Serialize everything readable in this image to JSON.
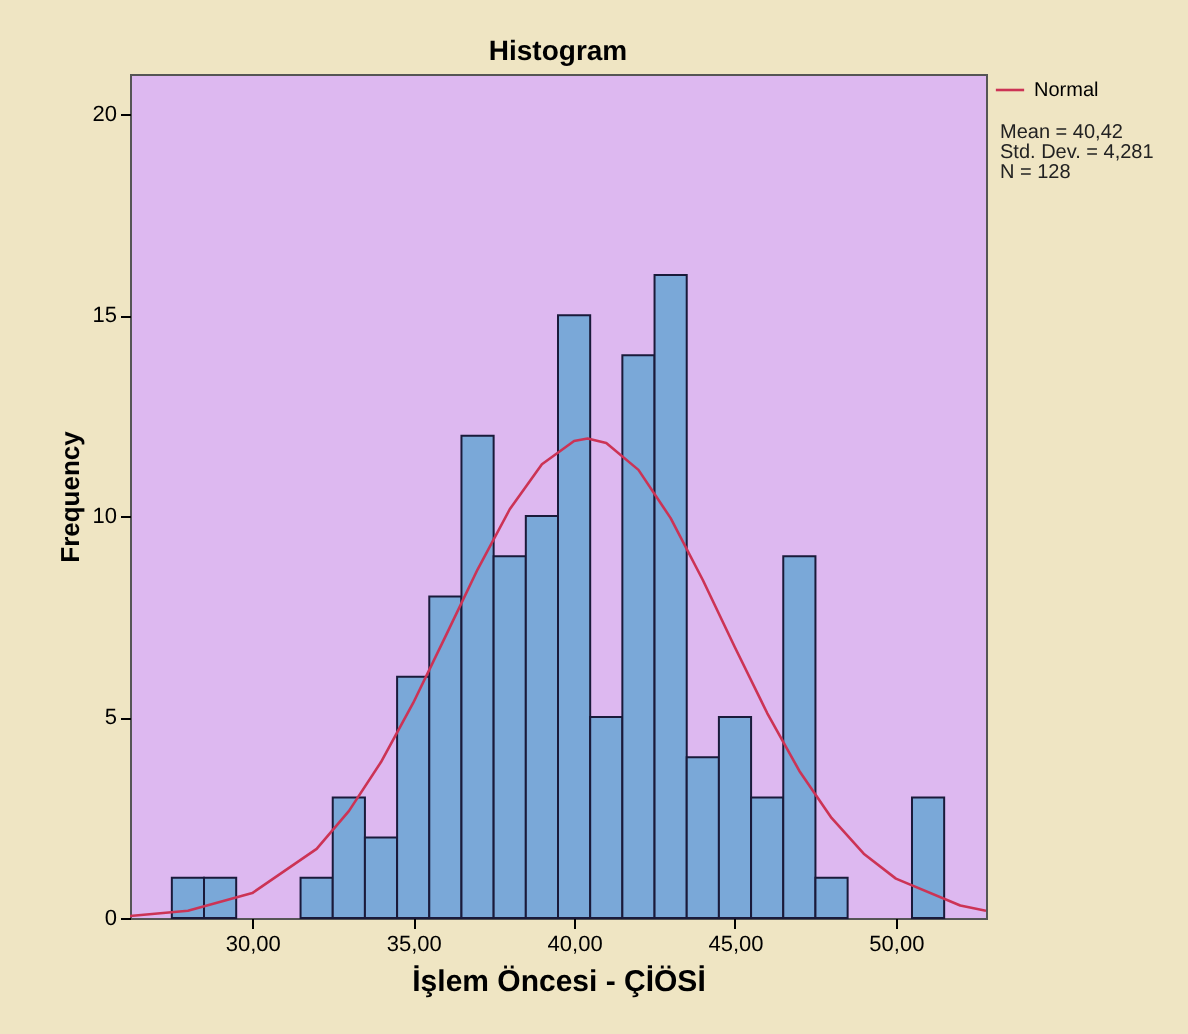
{
  "chart_data": {
    "type": "histogram",
    "title": "Histogram",
    "xlabel": "İşlem Öncesi - ÇİÖSİ",
    "ylabel": "Frequency",
    "bins": [
      27.5,
      28.5,
      29.5,
      30.5,
      31.5,
      32.5,
      33.5,
      34.5,
      35.5,
      36.5,
      37.5,
      38.5,
      39.5,
      40.5,
      41.5,
      42.5,
      43.5,
      44.5,
      45.5,
      46.5,
      47.5,
      48.5,
      49.5,
      50.5,
      51.5
    ],
    "values": [
      1,
      1,
      0,
      0,
      1,
      3,
      2,
      6,
      8,
      12,
      9,
      10,
      15,
      5,
      14,
      16,
      4,
      5,
      3,
      9,
      1,
      0,
      0,
      3
    ],
    "color": "#7aa8d8",
    "series": [
      {
        "name": "Normal",
        "type": "line",
        "color": "#cc3355",
        "x": [
          26.2,
          28,
          30,
          32,
          33,
          34,
          35,
          36,
          37,
          38,
          39,
          40,
          40.42,
          41,
          42,
          43,
          44,
          45,
          46,
          47,
          48,
          49,
          50,
          52,
          52.8
        ],
        "values": [
          0.05,
          0.18,
          0.62,
          1.72,
          2.66,
          3.88,
          5.35,
          7.0,
          8.67,
          10.17,
          11.29,
          11.87,
          11.93,
          11.82,
          11.15,
          9.95,
          8.41,
          6.73,
          5.1,
          3.66,
          2.49,
          1.6,
          0.98,
          0.31,
          0.18
        ]
      }
    ],
    "xlim": [
      26.2,
      52.8
    ],
    "ylim": [
      0,
      21
    ],
    "xticks": [
      {
        "value": 30,
        "label": "30,00"
      },
      {
        "value": 35,
        "label": "35,00"
      },
      {
        "value": 40,
        "label": "40,00"
      },
      {
        "value": 45,
        "label": "45,00"
      },
      {
        "value": 50,
        "label": "50,00"
      }
    ],
    "yticks": [
      0,
      5,
      10,
      15,
      20
    ],
    "annotations": [
      "Mean = 40,42",
      "Std. Dev. = 4,281",
      "N = 128"
    ],
    "legend": "top right",
    "grid": false
  }
}
